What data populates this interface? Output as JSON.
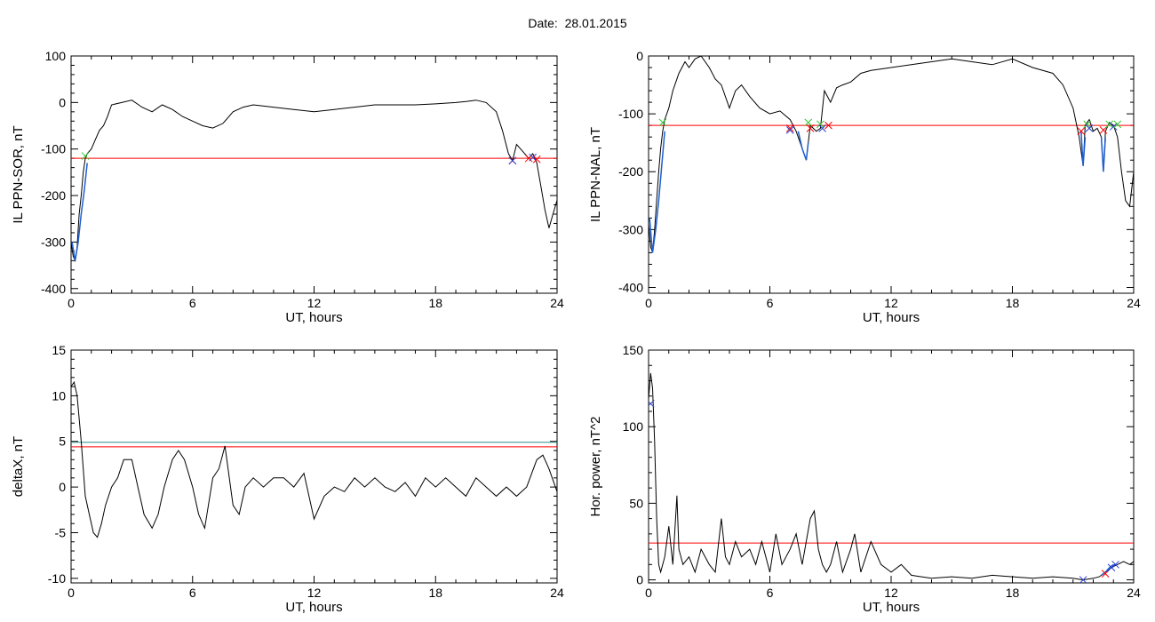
{
  "header": {
    "date_label": "Date:",
    "date_value": "28.01.2015"
  },
  "colors": {
    "data": "#000000",
    "threshold_red": "#ff0000",
    "threshold_teal": "#2e8b8b",
    "segment_blue": "#1e5fd0",
    "marker_red": "#ff0000",
    "marker_green": "#33cc33",
    "marker_blue": "#2a3fd0"
  },
  "chart_data": [
    {
      "type": "line",
      "title": "",
      "xlabel": "UT, hours",
      "ylabel": "IL PPN-SOR, nT",
      "xlim": [
        0,
        24
      ],
      "ylim": [
        -410,
        100
      ],
      "x_ticks": [
        0,
        6,
        12,
        18,
        24
      ],
      "y_ticks": [
        100,
        0,
        -100,
        -200,
        -300,
        -400
      ],
      "grid": false,
      "thresholds": [
        {
          "y": -120,
          "color": "#ff0000"
        }
      ],
      "series": [
        {
          "x": [
            0.0,
            0.1,
            0.2,
            0.3,
            0.4,
            0.5,
            0.6,
            0.7,
            0.8,
            1.0,
            1.2,
            1.4,
            1.6,
            1.8,
            2.0,
            2.5,
            3.0,
            3.5,
            4.0,
            4.5,
            5.0,
            5.5,
            6.0,
            6.5,
            7.0,
            7.5,
            8.0,
            8.5,
            9.0,
            10.0,
            11.0,
            12.0,
            13.0,
            14.0,
            15.0,
            16.0,
            17.0,
            18.0,
            19.0,
            19.5,
            20.0,
            20.5,
            21.0,
            21.3,
            21.6,
            21.8,
            22.0,
            22.3,
            22.6,
            22.8,
            23.0,
            23.2,
            23.4,
            23.6,
            23.8,
            24.0
          ],
          "y": [
            -300,
            -330,
            -340,
            -310,
            -240,
            -200,
            -150,
            -120,
            -110,
            -100,
            -80,
            -60,
            -50,
            -30,
            -5,
            0,
            5,
            -10,
            -20,
            -5,
            -15,
            -30,
            -40,
            -50,
            -55,
            -45,
            -20,
            -10,
            -5,
            -10,
            -15,
            -20,
            -15,
            -10,
            -5,
            -5,
            -5,
            -3,
            0,
            2,
            5,
            0,
            -20,
            -60,
            -110,
            -125,
            -90,
            -105,
            -120,
            -110,
            -130,
            -180,
            -230,
            -270,
            -240,
            -210
          ]
        }
      ],
      "highlight_segments": [
        {
          "x": [
            0.05,
            0.2,
            0.35,
            0.5,
            0.65,
            0.8
          ],
          "y": [
            -300,
            -340,
            -300,
            -240,
            -190,
            -130
          ]
        }
      ],
      "markers": [
        {
          "x": 0.7,
          "y": -115,
          "color": "#33cc33"
        },
        {
          "x": 21.8,
          "y": -125,
          "color": "#ff0000"
        },
        {
          "x": 21.8,
          "y": -125,
          "color": "#2a3fd0"
        },
        {
          "x": 22.6,
          "y": -120,
          "color": "#ff0000"
        },
        {
          "x": 22.8,
          "y": -118,
          "color": "#2a3fd0"
        },
        {
          "x": 23.0,
          "y": -122,
          "color": "#ff0000"
        }
      ]
    },
    {
      "type": "line",
      "title": "",
      "xlabel": "UT, hours",
      "ylabel": "IL PPN-NAL, nT",
      "xlim": [
        0,
        24
      ],
      "ylim": [
        -410,
        0
      ],
      "x_ticks": [
        0,
        6,
        12,
        18,
        24
      ],
      "y_ticks": [
        0,
        -100,
        -200,
        -300,
        -400
      ],
      "grid": false,
      "thresholds": [
        {
          "y": -120,
          "color": "#ff0000"
        }
      ],
      "series": [
        {
          "x": [
            0.0,
            0.1,
            0.2,
            0.3,
            0.4,
            0.5,
            0.6,
            0.7,
            0.8,
            1.0,
            1.2,
            1.5,
            1.8,
            2.0,
            2.3,
            2.6,
            3.0,
            3.3,
            3.6,
            4.0,
            4.3,
            4.6,
            5.0,
            5.5,
            6.0,
            6.5,
            7.0,
            7.3,
            7.6,
            7.8,
            8.0,
            8.3,
            8.5,
            8.7,
            9.0,
            9.3,
            9.6,
            10.0,
            10.5,
            11.0,
            12.0,
            13.0,
            14.0,
            15.0,
            16.0,
            17.0,
            18.0,
            19.0,
            20.0,
            20.5,
            21.0,
            21.3,
            21.5,
            21.6,
            21.8,
            22.0,
            22.2,
            22.4,
            22.5,
            22.6,
            22.8,
            23.0,
            23.2,
            23.4,
            23.6,
            23.8,
            24.0
          ],
          "y": [
            -290,
            -330,
            -340,
            -300,
            -250,
            -200,
            -160,
            -130,
            -110,
            -90,
            -60,
            -30,
            -10,
            -20,
            -5,
            0,
            -20,
            -40,
            -50,
            -90,
            -60,
            -50,
            -70,
            -90,
            -100,
            -95,
            -110,
            -130,
            -160,
            -180,
            -120,
            -130,
            -125,
            -60,
            -80,
            -55,
            -50,
            -45,
            -30,
            -25,
            -20,
            -15,
            -10,
            -5,
            -10,
            -15,
            -5,
            -20,
            -30,
            -50,
            -90,
            -140,
            -190,
            -120,
            -110,
            -130,
            -125,
            -140,
            -200,
            -130,
            -115,
            -120,
            -140,
            -200,
            -250,
            -260,
            -200
          ]
        }
      ],
      "highlight_segments": [
        {
          "x": [
            0.05,
            0.2,
            0.35,
            0.5,
            0.65,
            0.8
          ],
          "y": [
            -280,
            -340,
            -300,
            -250,
            -190,
            -130
          ]
        },
        {
          "x": [
            7.4,
            7.6,
            7.8,
            7.9
          ],
          "y": [
            -130,
            -160,
            -180,
            -150
          ]
        },
        {
          "x": [
            21.4,
            21.5,
            21.6
          ],
          "y": [
            -130,
            -190,
            -140
          ]
        },
        {
          "x": [
            22.4,
            22.5,
            22.6
          ],
          "y": [
            -140,
            -200,
            -140
          ]
        }
      ],
      "markers": [
        {
          "x": 0.7,
          "y": -115,
          "color": "#33cc33"
        },
        {
          "x": 7.0,
          "y": -125,
          "color": "#ff0000"
        },
        {
          "x": 7.0,
          "y": -128,
          "color": "#2a3fd0"
        },
        {
          "x": 7.9,
          "y": -115,
          "color": "#33cc33"
        },
        {
          "x": 8.0,
          "y": -125,
          "color": "#ff0000"
        },
        {
          "x": 8.5,
          "y": -118,
          "color": "#33cc33"
        },
        {
          "x": 8.6,
          "y": -125,
          "color": "#2a3fd0"
        },
        {
          "x": 8.9,
          "y": -120,
          "color": "#ff0000"
        },
        {
          "x": 21.4,
          "y": -130,
          "color": "#ff0000"
        },
        {
          "x": 21.7,
          "y": -118,
          "color": "#33cc33"
        },
        {
          "x": 21.8,
          "y": -125,
          "color": "#2a3fd0"
        },
        {
          "x": 22.5,
          "y": -128,
          "color": "#ff0000"
        },
        {
          "x": 22.8,
          "y": -118,
          "color": "#33cc33"
        },
        {
          "x": 23.0,
          "y": -122,
          "color": "#2a3fd0"
        },
        {
          "x": 23.2,
          "y": -118,
          "color": "#33cc33"
        }
      ]
    },
    {
      "type": "line",
      "title": "",
      "xlabel": "UT, hours",
      "ylabel": "deltaX, nT",
      "xlim": [
        0,
        24
      ],
      "ylim": [
        -10.5,
        15
      ],
      "x_ticks": [
        0,
        6,
        12,
        18,
        24
      ],
      "y_ticks": [
        15,
        10,
        5,
        0,
        -5,
        -10
      ],
      "grid": false,
      "thresholds": [
        {
          "y": 4.9,
          "color": "#2e8b8b"
        },
        {
          "y": 4.4,
          "color": "#ff0000"
        }
      ],
      "series": [
        {
          "x": [
            0.0,
            0.15,
            0.3,
            0.5,
            0.7,
            0.9,
            1.1,
            1.3,
            1.5,
            1.7,
            2.0,
            2.3,
            2.6,
            3.0,
            3.3,
            3.6,
            4.0,
            4.3,
            4.6,
            5.0,
            5.3,
            5.6,
            6.0,
            6.3,
            6.6,
            7.0,
            7.3,
            7.6,
            8.0,
            8.3,
            8.6,
            9.0,
            9.5,
            10.0,
            10.5,
            11.0,
            11.5,
            12.0,
            12.5,
            13.0,
            13.5,
            14.0,
            14.5,
            15.0,
            15.5,
            16.0,
            16.5,
            17.0,
            17.5,
            18.0,
            18.5,
            19.0,
            19.5,
            20.0,
            20.5,
            21.0,
            21.5,
            22.0,
            22.5,
            23.0,
            23.3,
            23.6,
            24.0
          ],
          "y": [
            11,
            11.5,
            10,
            5,
            -1,
            -3,
            -5,
            -5.5,
            -4,
            -2,
            0,
            1,
            3,
            3,
            0,
            -3,
            -4.5,
            -3,
            0,
            3,
            4,
            3,
            0,
            -3,
            -4.5,
            1,
            2,
            4.5,
            -2,
            -3,
            0,
            1,
            0,
            1,
            1,
            0,
            1.5,
            -3.5,
            -1,
            0,
            -0.5,
            1,
            0,
            1,
            0,
            -0.5,
            0.5,
            -1,
            1,
            0,
            1,
            0,
            -1,
            1,
            0,
            -1,
            0,
            -1,
            0,
            3,
            3.5,
            2,
            -0.5
          ]
        }
      ],
      "highlight_segments": [],
      "markers": []
    },
    {
      "type": "line",
      "title": "",
      "xlabel": "UT, hours",
      "ylabel": "Hor. power, nT^2",
      "xlim": [
        0,
        24
      ],
      "ylim": [
        -2,
        150
      ],
      "x_ticks": [
        0,
        6,
        12,
        18,
        24
      ],
      "y_ticks": [
        150,
        100,
        50,
        0
      ],
      "grid": false,
      "thresholds": [
        {
          "y": 24,
          "color": "#ff0000"
        }
      ],
      "series": [
        {
          "x": [
            0.0,
            0.1,
            0.2,
            0.3,
            0.4,
            0.5,
            0.6,
            0.8,
            1.0,
            1.2,
            1.4,
            1.5,
            1.7,
            2.0,
            2.3,
            2.6,
            3.0,
            3.3,
            3.6,
            3.8,
            4.0,
            4.3,
            4.6,
            5.0,
            5.3,
            5.6,
            6.0,
            6.3,
            6.6,
            7.0,
            7.3,
            7.6,
            8.0,
            8.2,
            8.4,
            8.6,
            8.8,
            9.0,
            9.3,
            9.6,
            10.0,
            10.2,
            10.5,
            11.0,
            11.5,
            12.0,
            12.5,
            13.0,
            13.5,
            14.0,
            15.0,
            16.0,
            17.0,
            18.0,
            19.0,
            20.0,
            21.0,
            21.5,
            22.0,
            22.3,
            22.6,
            22.9,
            23.2,
            23.5,
            23.8,
            24.0
          ],
          "y": [
            118,
            135,
            125,
            90,
            40,
            10,
            5,
            15,
            35,
            10,
            55,
            20,
            10,
            15,
            5,
            20,
            10,
            5,
            40,
            15,
            10,
            25,
            15,
            20,
            10,
            25,
            5,
            30,
            10,
            20,
            30,
            10,
            40,
            45,
            20,
            10,
            5,
            10,
            25,
            5,
            20,
            30,
            5,
            25,
            10,
            5,
            10,
            3,
            2,
            1,
            2,
            1,
            3,
            2,
            1,
            2,
            1,
            0,
            1,
            2,
            5,
            8,
            10,
            12,
            10,
            12
          ]
        }
      ],
      "highlight_segments": [
        {
          "x": [
            22.4,
            22.6,
            22.8,
            23.0
          ],
          "y": [
            3,
            5,
            8,
            10
          ]
        }
      ],
      "markers": [
        {
          "x": 0.1,
          "y": 115,
          "color": "#2a3fd0"
        },
        {
          "x": 21.5,
          "y": 0,
          "color": "#2a3fd0"
        },
        {
          "x": 22.6,
          "y": 4,
          "color": "#ff0000"
        },
        {
          "x": 22.9,
          "y": 8,
          "color": "#2a3fd0"
        },
        {
          "x": 23.1,
          "y": 10,
          "color": "#2a3fd0"
        }
      ]
    }
  ]
}
